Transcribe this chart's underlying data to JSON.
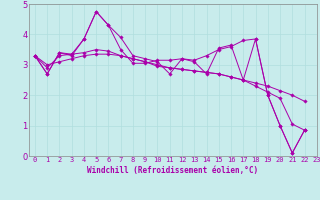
{
  "xlabel": "Windchill (Refroidissement éolien,°C)",
  "background_color": "#c8ecec",
  "line_color": "#aa00aa",
  "xlim": [
    -0.5,
    23
  ],
  "ylim": [
    0,
    5
  ],
  "xticks": [
    0,
    1,
    2,
    3,
    4,
    5,
    6,
    7,
    8,
    9,
    10,
    11,
    12,
    13,
    14,
    15,
    16,
    17,
    18,
    19,
    20,
    21,
    22,
    23
  ],
  "yticks": [
    0,
    1,
    2,
    3,
    4,
    5
  ],
  "grid_color": "#b0dede",
  "series": [
    [
      3.3,
      2.7,
      3.4,
      3.3,
      3.85,
      4.75,
      4.3,
      3.9,
      3.3,
      3.2,
      3.1,
      2.7,
      3.2,
      3.1,
      2.7,
      3.55,
      3.65,
      2.5,
      3.85,
      2.0,
      1.0,
      0.1,
      0.85
    ],
    [
      3.3,
      2.7,
      3.4,
      3.35,
      3.85,
      4.75,
      4.3,
      3.5,
      3.05,
      3.05,
      3.15,
      3.15,
      3.2,
      3.15,
      3.3,
      3.5,
      3.6,
      3.8,
      3.85,
      2.0,
      1.0,
      0.1,
      0.85
    ],
    [
      3.3,
      2.9,
      3.3,
      3.35,
      3.4,
      3.5,
      3.45,
      3.3,
      3.2,
      3.1,
      2.95,
      2.9,
      2.85,
      2.8,
      2.75,
      2.7,
      2.6,
      2.5,
      2.3,
      2.1,
      1.9,
      1.05,
      0.85
    ],
    [
      3.3,
      3.0,
      3.1,
      3.2,
      3.3,
      3.35,
      3.35,
      3.3,
      3.2,
      3.1,
      3.0,
      2.9,
      2.85,
      2.8,
      2.75,
      2.7,
      2.6,
      2.5,
      2.4,
      2.3,
      2.15,
      2.0,
      1.8
    ]
  ],
  "tick_fontsize": 5,
  "xlabel_fontsize": 5.5,
  "xlabel_fontweight": "bold"
}
